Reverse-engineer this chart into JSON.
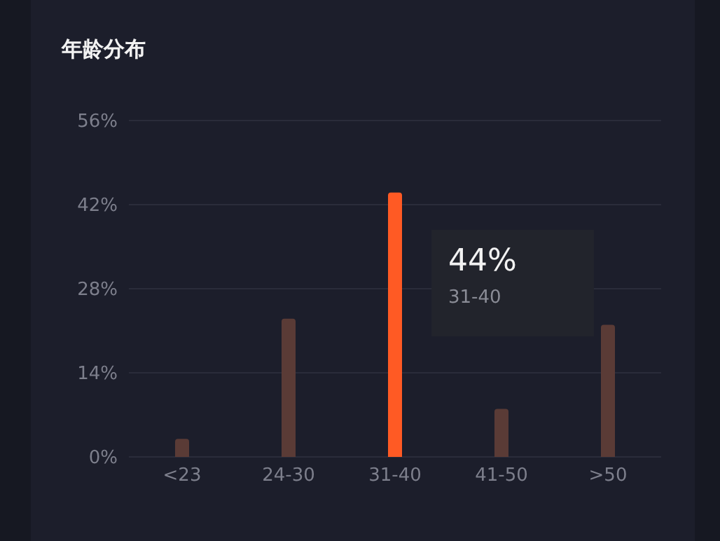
{
  "chart_data": {
    "type": "bar",
    "title": "年龄分布",
    "categories": [
      "<23",
      "24-30",
      "31-40",
      "41-50",
      ">50"
    ],
    "values": [
      3,
      23,
      44,
      8,
      22
    ],
    "colors": [
      "#5a3b36",
      "#5a3b36",
      "#ff5a24",
      "#5a3b36",
      "#5a3b36"
    ],
    "ylim": [
      0,
      56
    ],
    "yticks": [
      {
        "value": 0,
        "label": "0%"
      },
      {
        "value": 14,
        "label": "14%"
      },
      {
        "value": 28,
        "label": "28%"
      },
      {
        "value": 42,
        "label": "42%"
      },
      {
        "value": 56,
        "label": "56%"
      }
    ],
    "grid": "y",
    "annotations": [
      {
        "text": "44%",
        "x": "31-40",
        "y": 44
      },
      "31-40"
    ]
  }
}
